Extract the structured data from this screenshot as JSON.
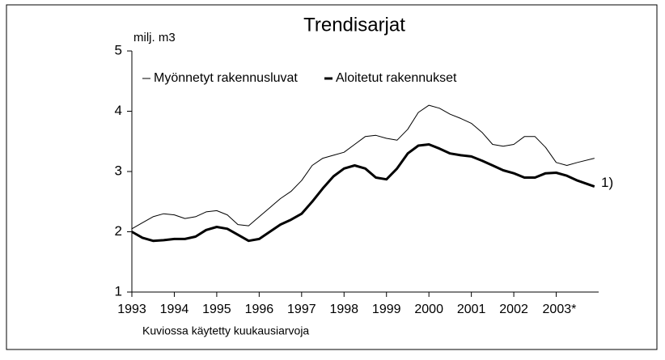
{
  "chart_data": {
    "type": "line",
    "title": "Trendisarjat",
    "ylabel": "milj. m3",
    "note": "Kuviossa käytetty kuukausiarvoja",
    "annotation": "1)",
    "x": [
      1993,
      1993.25,
      1993.5,
      1993.75,
      1994,
      1994.25,
      1994.5,
      1994.75,
      1995,
      1995.25,
      1995.5,
      1995.75,
      1996,
      1996.25,
      1996.5,
      1996.75,
      1997,
      1997.25,
      1997.5,
      1997.75,
      1998,
      1998.25,
      1998.5,
      1998.75,
      1999,
      1999.25,
      1999.5,
      1999.75,
      2000,
      2000.25,
      2000.5,
      2000.75,
      2001,
      2001.25,
      2001.5,
      2001.75,
      2002,
      2002.25,
      2002.5,
      2002.75,
      2003,
      2003.25,
      2003.5,
      2003.9
    ],
    "series": [
      {
        "name": "Myönnetyt rakennusluvat",
        "color": "#000000",
        "values": [
          2.05,
          2.15,
          2.25,
          2.3,
          2.28,
          2.22,
          2.25,
          2.33,
          2.35,
          2.28,
          2.12,
          2.1,
          2.25,
          2.4,
          2.55,
          2.67,
          2.85,
          3.1,
          3.22,
          3.27,
          3.32,
          3.45,
          3.58,
          3.6,
          3.55,
          3.52,
          3.7,
          3.98,
          4.1,
          4.05,
          3.95,
          3.88,
          3.8,
          3.65,
          3.45,
          3.42,
          3.45,
          3.58,
          3.58,
          3.4,
          3.15,
          3.1,
          3.15,
          3.22
        ]
      },
      {
        "name": "Aloitetut rakennukset",
        "color": "#000000",
        "values": [
          2.0,
          1.9,
          1.85,
          1.86,
          1.88,
          1.88,
          1.92,
          2.03,
          2.08,
          2.05,
          1.95,
          1.85,
          1.88,
          2.0,
          2.12,
          2.2,
          2.3,
          2.5,
          2.72,
          2.92,
          3.05,
          3.1,
          3.05,
          2.9,
          2.87,
          3.05,
          3.3,
          3.43,
          3.45,
          3.38,
          3.3,
          3.27,
          3.25,
          3.18,
          3.1,
          3.02,
          2.97,
          2.9,
          2.9,
          2.97,
          2.98,
          2.93,
          2.85,
          2.75
        ]
      }
    ],
    "xlim": [
      1993,
      2004
    ],
    "xticks": [
      1993,
      1994,
      1995,
      1996,
      1997,
      1998,
      1999,
      2000,
      2001,
      2002,
      {
        "value": 2003,
        "label": "2003*"
      }
    ],
    "ylim": [
      1,
      5
    ],
    "yticks": [
      1,
      2,
      3,
      4,
      5
    ],
    "grid": false
  }
}
